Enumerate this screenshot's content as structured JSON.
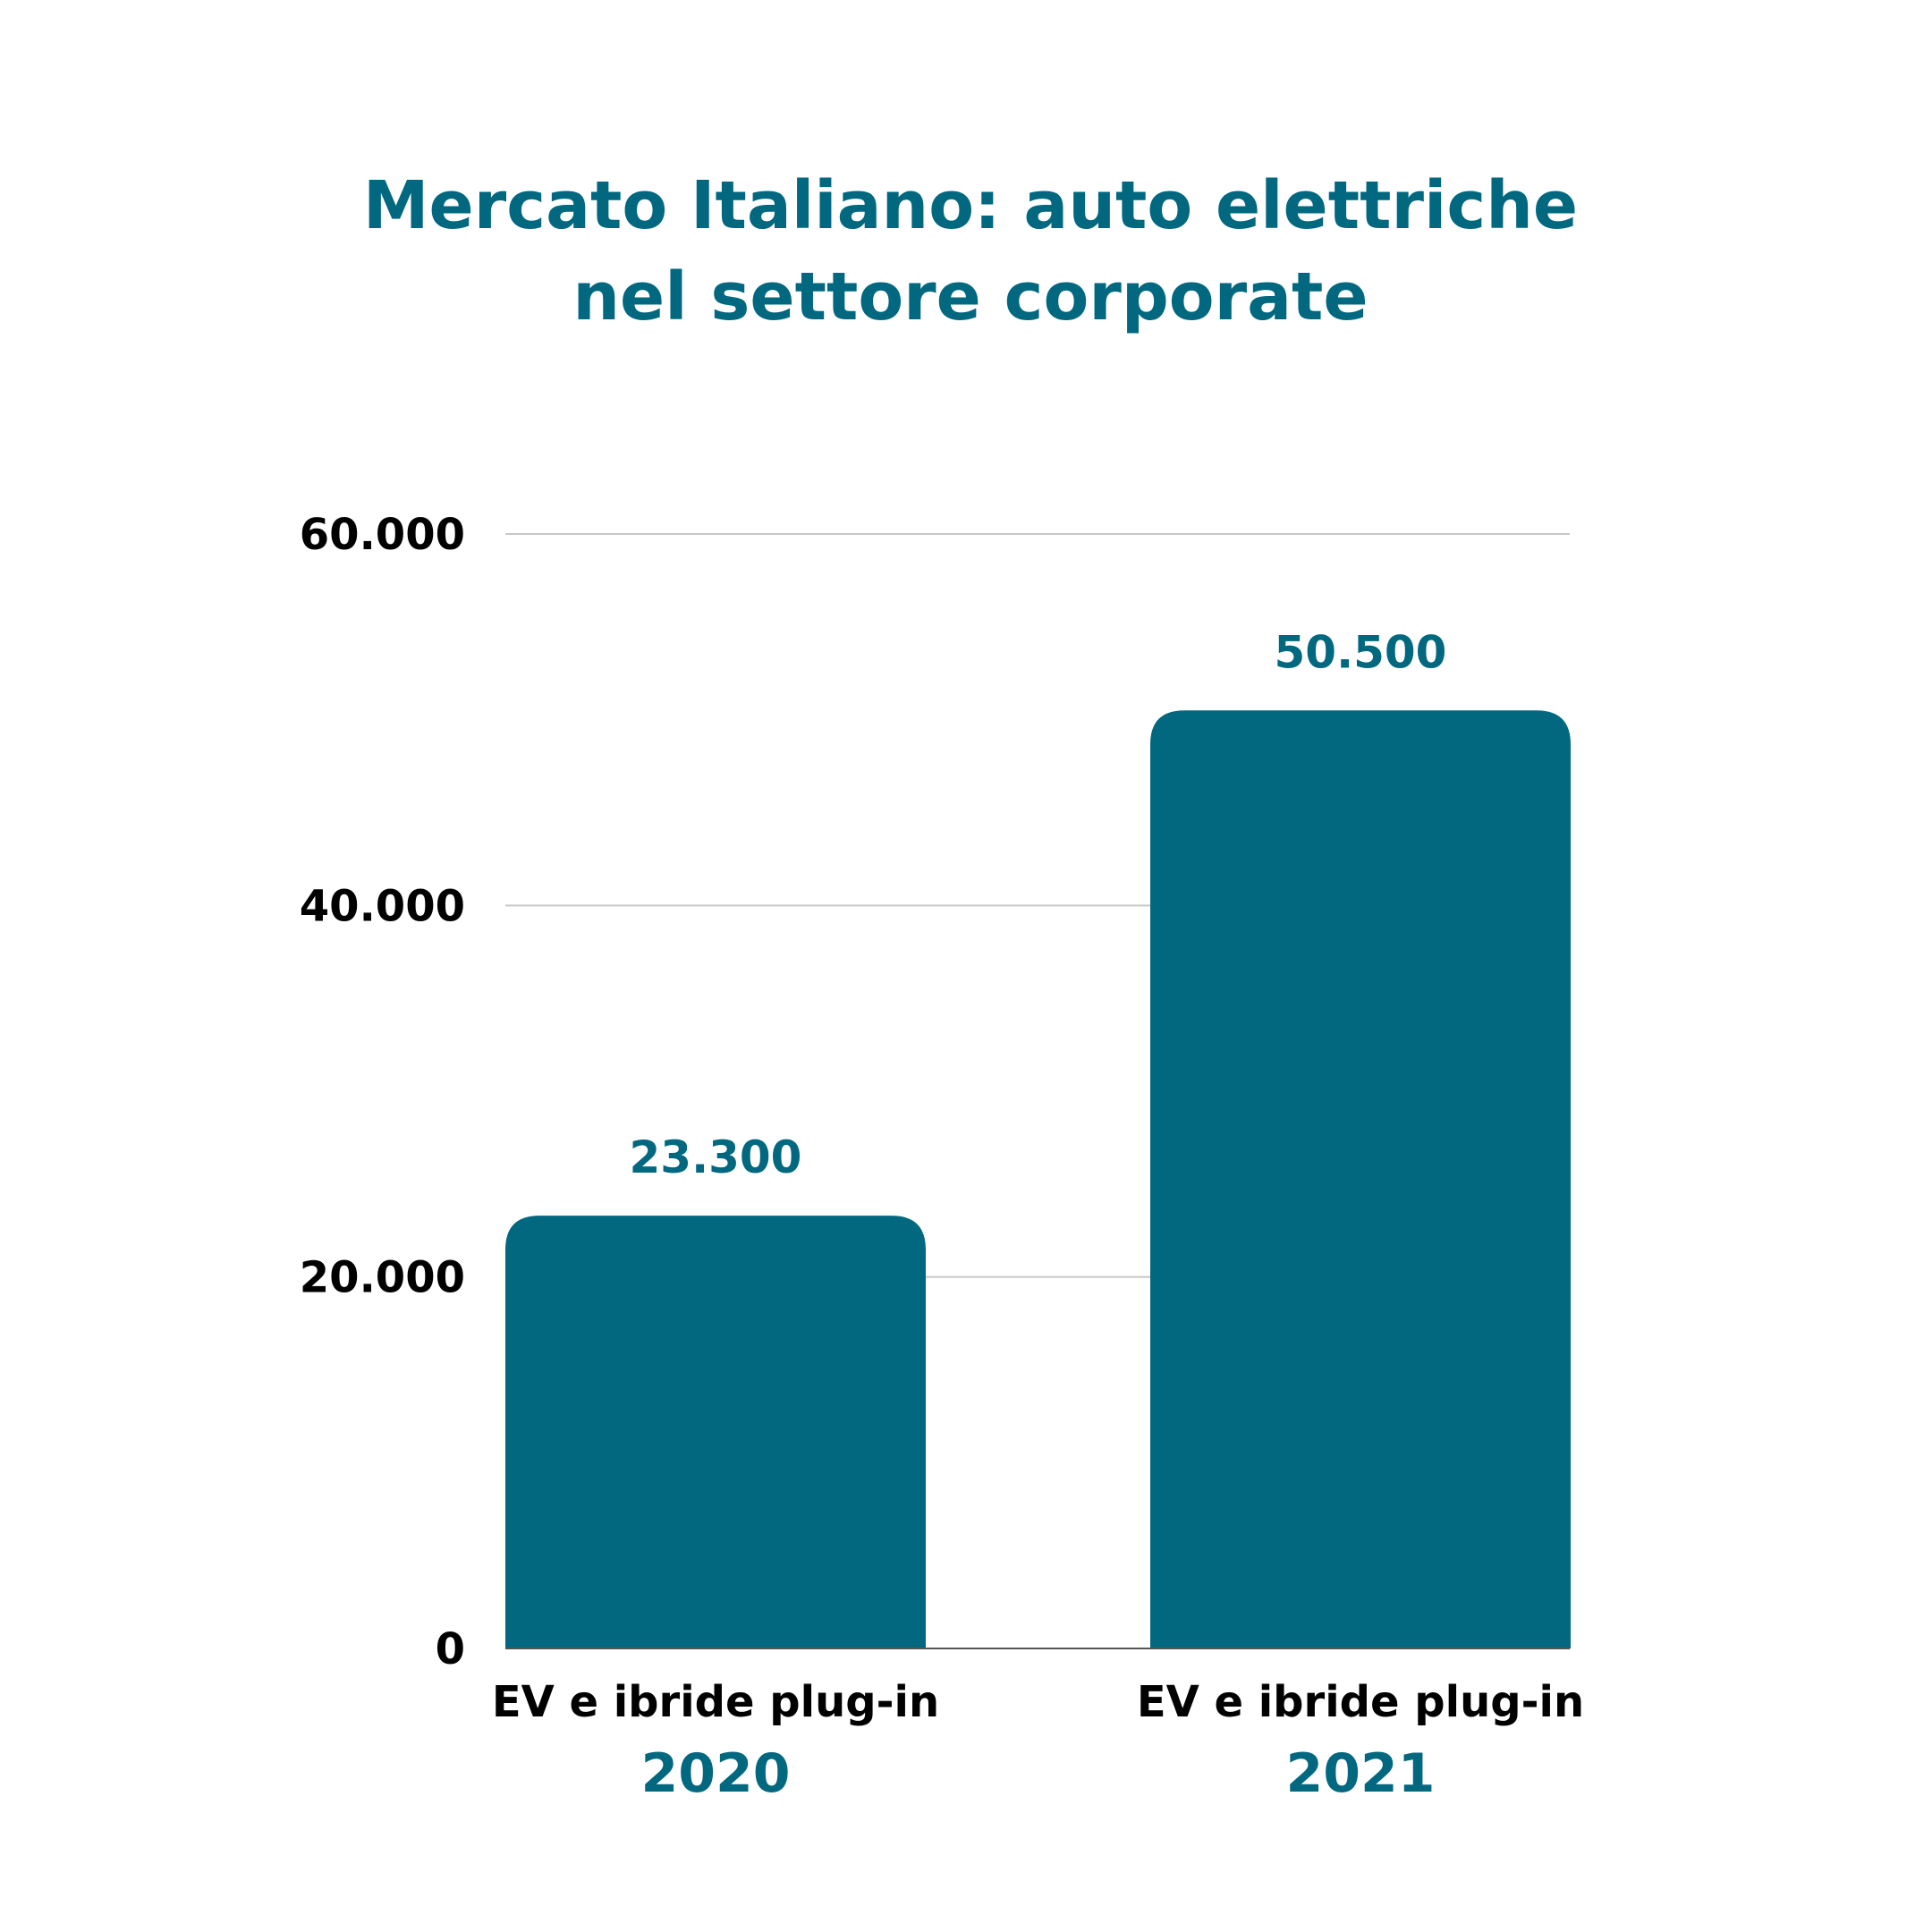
{
  "chart_data": {
    "type": "bar",
    "title_lines": [
      "Mercato Italiano: auto elettriche",
      "nel settore corporate"
    ],
    "categories": [
      "EV e ibride plug-in",
      "EV e ibride plug-in"
    ],
    "category_years": [
      "2020",
      "2021"
    ],
    "values": [
      23300,
      50500
    ],
    "value_labels": [
      "23.300",
      "50.500"
    ],
    "ylim": [
      0,
      60000
    ],
    "yticks": [
      0,
      20000,
      40000,
      60000
    ],
    "ytick_labels": [
      "0",
      "20.000",
      "40.000",
      "60.000"
    ],
    "xlabel": "",
    "ylabel": "",
    "grid": true,
    "legend": false
  },
  "colors": {
    "bar": "#016880",
    "accent_text": "#016880",
    "axis_text": "#000000",
    "grid": "#c8c8c8",
    "baseline": "#555555"
  }
}
